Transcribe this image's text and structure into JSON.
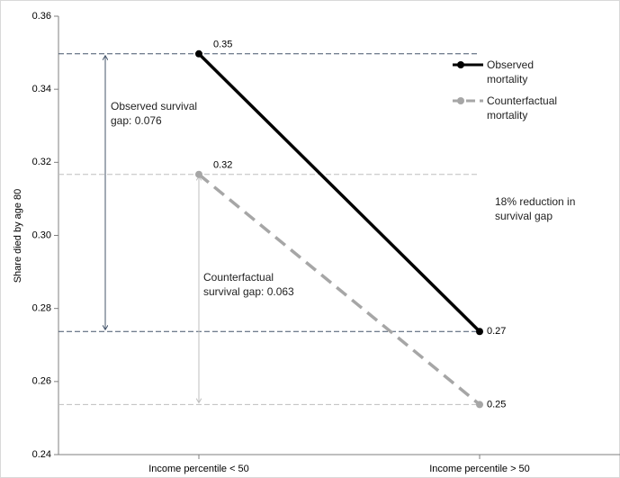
{
  "chart_data": {
    "type": "line",
    "y_label": "Share died by age 80",
    "categories": [
      "Income percentile < 50",
      "Income percentile > 50"
    ],
    "series": [
      {
        "name": "Observed mortality",
        "color": "#000000",
        "ref_color": "#44546a",
        "dashed": false,
        "values": [
          0.3497,
          0.2737
        ],
        "value_labels": [
          "0.35",
          "0.27"
        ]
      },
      {
        "name": "Counterfactual mortality",
        "color": "#a6a6a6",
        "ref_color": "#bfbfbf",
        "dashed": true,
        "values": [
          0.3167,
          0.2537
        ],
        "value_labels": [
          "0.32",
          "0.25"
        ]
      }
    ],
    "annotations": [
      "Observed survival gap: 0.076",
      "Counterfactual survival gap: 0.063",
      "18% reduction in survival gap"
    ],
    "ylim": [
      0.24,
      0.36
    ],
    "yticks": [
      0.24,
      0.26,
      0.28,
      {
        "value": 0.3,
        "label": "0.30"
      },
      0.32,
      0.34,
      0.36
    ],
    "grid": false
  }
}
